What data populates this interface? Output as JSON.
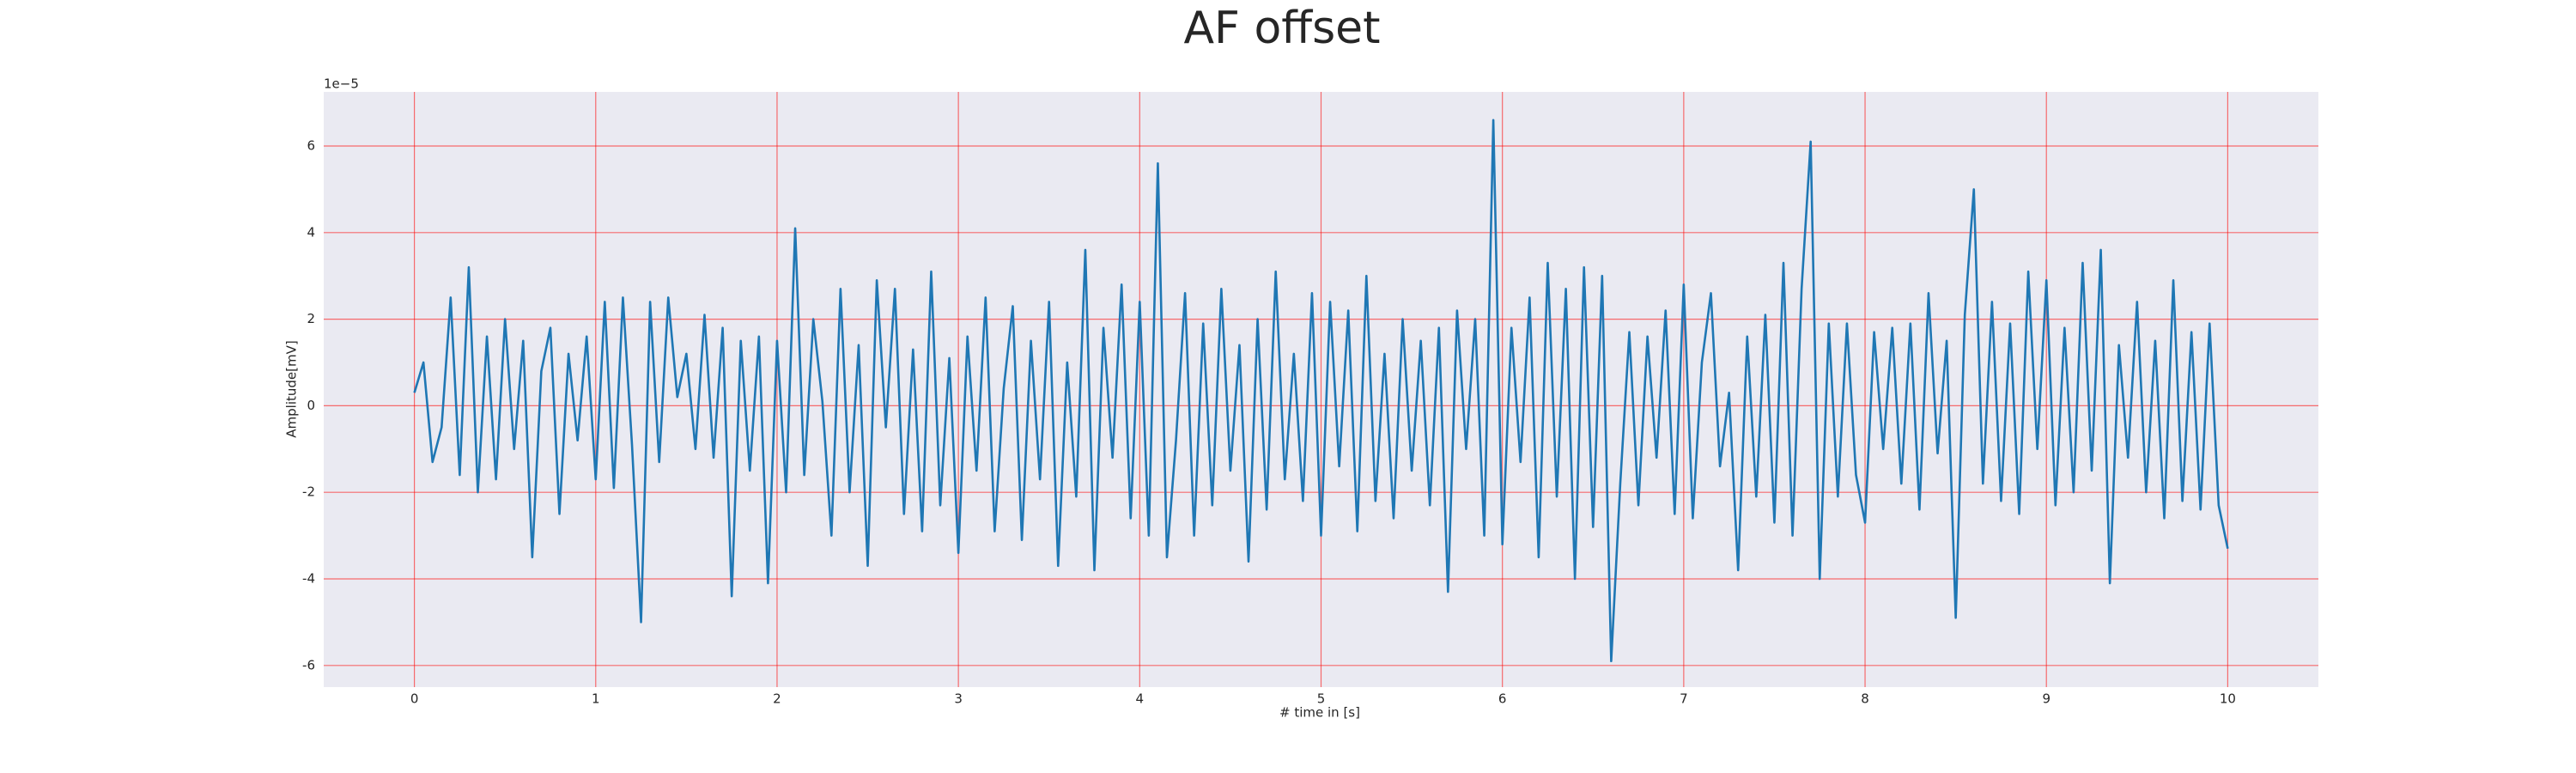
{
  "chart_data": {
    "type": "line",
    "title": "AF offset",
    "x_label": "# time in [s]",
    "y_label": "Amplitude[mV]",
    "y_offset_label": "1e−5",
    "color": "#1f77b4",
    "grid": true,
    "xlim": [
      -0.5,
      10.5
    ],
    "xticks": [
      0,
      1,
      2,
      3,
      4,
      5,
      6,
      7,
      8,
      9,
      10
    ],
    "ylim": [
      -6.5,
      7.25
    ],
    "yticks": [
      -6,
      -4,
      -2,
      0,
      2,
      4,
      6
    ],
    "x": [
      0,
      0.05,
      0.1,
      0.15,
      0.2,
      0.25,
      0.3,
      0.35,
      0.4,
      0.45,
      0.5,
      0.55,
      0.6,
      0.65,
      0.7,
      0.75,
      0.8,
      0.85,
      0.9,
      0.95,
      1,
      1.05,
      1.1,
      1.15,
      1.2,
      1.25,
      1.3,
      1.35,
      1.4,
      1.45,
      1.5,
      1.55,
      1.6,
      1.65,
      1.7,
      1.75,
      1.8,
      1.85,
      1.9,
      1.95,
      2,
      2.05,
      2.1,
      2.15,
      2.2,
      2.25,
      2.3,
      2.35,
      2.4,
      2.45,
      2.5,
      2.55,
      2.6,
      2.65,
      2.7,
      2.75,
      2.8,
      2.85,
      2.9,
      2.95,
      3,
      3.05,
      3.1,
      3.15,
      3.2,
      3.25,
      3.3,
      3.35,
      3.4,
      3.45,
      3.5,
      3.55,
      3.6,
      3.65,
      3.7,
      3.75,
      3.8,
      3.85,
      3.9,
      3.95,
      4,
      4.05,
      4.1,
      4.15,
      4.2,
      4.25,
      4.3,
      4.35,
      4.4,
      4.45,
      4.5,
      4.55,
      4.6,
      4.65,
      4.7,
      4.75,
      4.8,
      4.85,
      4.9,
      4.95,
      5,
      5.05,
      5.1,
      5.15,
      5.2,
      5.25,
      5.3,
      5.35,
      5.4,
      5.45,
      5.5,
      5.55,
      5.6,
      5.65,
      5.7,
      5.75,
      5.8,
      5.85,
      5.9,
      5.95,
      6,
      6.05,
      6.1,
      6.15,
      6.2,
      6.25,
      6.3,
      6.35,
      6.4,
      6.45,
      6.5,
      6.55,
      6.6,
      6.65,
      6.7,
      6.75,
      6.8,
      6.85,
      6.9,
      6.95,
      7,
      7.05,
      7.1,
      7.15,
      7.2,
      7.25,
      7.3,
      7.35,
      7.4,
      7.45,
      7.5,
      7.55,
      7.6,
      7.65,
      7.7,
      7.75,
      7.8,
      7.85,
      7.9,
      7.95,
      8,
      8.05,
      8.1,
      8.15,
      8.2,
      8.25,
      8.3,
      8.35,
      8.4,
      8.45,
      8.5,
      8.55,
      8.6,
      8.65,
      8.7,
      8.75,
      8.8,
      8.85,
      8.9,
      8.95,
      9,
      9.05,
      9.1,
      9.15,
      9.2,
      9.25,
      9.3,
      9.35,
      9.4,
      9.45,
      9.5,
      9.55,
      9.6,
      9.65,
      9.7,
      9.75,
      9.8,
      9.85,
      9.9,
      9.95,
      10
    ],
    "values": [
      0.3,
      1.0,
      -1.3,
      -0.5,
      2.5,
      -1.6,
      3.2,
      -2.0,
      1.6,
      -1.7,
      2.0,
      -1.0,
      1.5,
      -3.5,
      0.8,
      1.8,
      -2.5,
      1.2,
      -0.8,
      1.6,
      -1.7,
      2.4,
      -1.9,
      2.5,
      -0.9,
      -5.0,
      2.4,
      -1.3,
      2.5,
      0.2,
      1.2,
      -1.0,
      2.1,
      -1.2,
      1.8,
      -4.4,
      1.5,
      -1.5,
      1.6,
      -4.1,
      1.5,
      -2.0,
      4.1,
      -1.6,
      2.0,
      0.1,
      -3.0,
      2.7,
      -2.0,
      1.4,
      -3.7,
      2.9,
      -0.5,
      2.7,
      -2.5,
      1.3,
      -2.9,
      3.1,
      -2.3,
      1.1,
      -3.4,
      1.6,
      -1.5,
      2.5,
      -2.9,
      0.4,
      2.3,
      -3.1,
      1.5,
      -1.7,
      2.4,
      -3.7,
      1.0,
      -2.1,
      3.6,
      -3.8,
      1.8,
      -1.2,
      2.8,
      -2.6,
      2.4,
      -3.0,
      5.6,
      -3.5,
      -0.8,
      2.6,
      -3.0,
      1.9,
      -2.3,
      2.7,
      -1.5,
      1.4,
      -3.6,
      2.0,
      -2.4,
      3.1,
      -1.7,
      1.2,
      -2.2,
      2.6,
      -3.0,
      2.4,
      -1.4,
      2.2,
      -2.9,
      3.0,
      -2.2,
      1.2,
      -2.6,
      2.0,
      -1.5,
      1.5,
      -2.3,
      1.8,
      -4.3,
      2.2,
      -1.0,
      2.0,
      -3.0,
      6.6,
      -3.2,
      1.8,
      -1.3,
      2.5,
      -3.5,
      3.3,
      -2.1,
      2.7,
      -4.0,
      3.2,
      -2.8,
      3.0,
      -5.9,
      -1.8,
      1.7,
      -2.3,
      1.6,
      -1.2,
      2.2,
      -2.5,
      2.8,
      -2.6,
      1.0,
      2.6,
      -1.4,
      0.3,
      -3.8,
      1.6,
      -2.1,
      2.1,
      -2.7,
      3.3,
      -3.0,
      2.7,
      6.1,
      -4.0,
      1.9,
      -2.1,
      1.9,
      -1.6,
      -2.7,
      1.7,
      -1.0,
      1.8,
      -1.8,
      1.9,
      -2.4,
      2.6,
      -1.1,
      1.5,
      -4.9,
      2.1,
      5.0,
      -1.8,
      2.4,
      -2.2,
      1.9,
      -2.5,
      3.1,
      -1.0,
      2.9,
      -2.3,
      1.8,
      -2.0,
      3.3,
      -1.5,
      3.6,
      -4.1,
      1.4,
      -1.2,
      2.4,
      -2.0,
      1.5,
      -2.6,
      2.9,
      -2.2,
      1.7,
      -2.4,
      1.9,
      -2.3,
      -3.3
    ]
  }
}
